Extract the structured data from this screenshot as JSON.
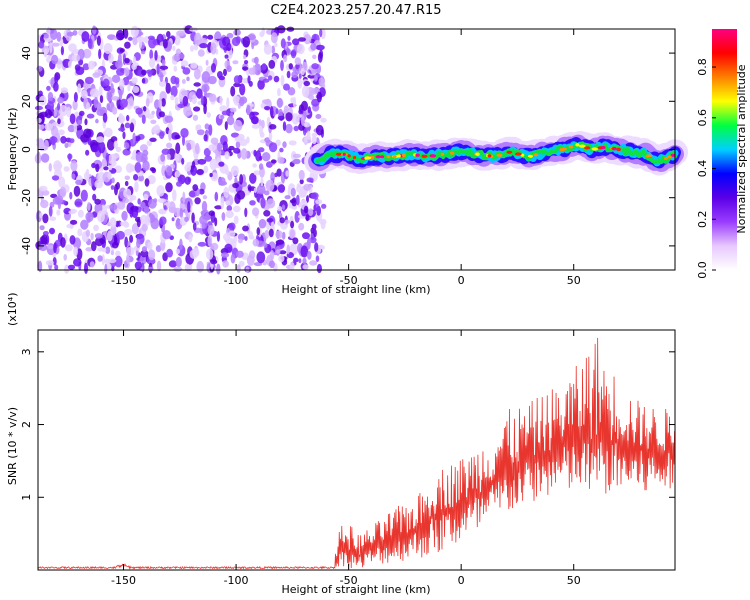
{
  "title": "C2E4.2023.257.20.47.R15",
  "chart_data": [
    {
      "type": "heatmap",
      "panel": "spectrogram",
      "xlabel": "Height of straight line (km)",
      "ylabel": "Frequency (Hz)",
      "xlim": [
        -188,
        95
      ],
      "ylim": [
        -50,
        50
      ],
      "xticks": [
        -150,
        -100,
        -50,
        0,
        50
      ],
      "yticks": [
        -40,
        -20,
        0,
        20,
        40
      ],
      "noise_region_x": [
        -188,
        -64
      ],
      "ridge": {
        "x": [
          -64,
          -58,
          -52,
          -45,
          -38,
          -30,
          -22,
          -15,
          -8,
          0,
          8,
          15,
          22,
          30,
          38,
          45,
          52,
          58,
          64,
          70,
          76,
          82,
          88,
          95
        ],
        "y": [
          -5,
          -2,
          -2,
          -4,
          -3,
          -3,
          -2,
          -3,
          -2,
          -1,
          -2,
          -3,
          -1,
          -3,
          -1,
          0,
          2,
          0,
          1,
          0,
          -1,
          -2,
          -5,
          -2
        ]
      },
      "colorbar": {
        "label": "Normalized spectral amplitude",
        "range": [
          0.0,
          0.95
        ],
        "ticks": [
          0.0,
          0.2,
          0.4,
          0.6,
          0.8
        ],
        "tick_labels": [
          "0.0",
          "0.2",
          "0.4",
          "0.6",
          "0.8"
        ],
        "colors": [
          "#ffffff",
          "#e8c8ff",
          "#9a3cff",
          "#5a00e6",
          "#0000ff",
          "#00d0ff",
          "#00ff40",
          "#ffff00",
          "#ff8000",
          "#ff0000",
          "#ff0080"
        ]
      }
    },
    {
      "type": "line",
      "panel": "snr",
      "xlabel": "Height of straight line (km)",
      "ylabel": "SNR (10 * v/v)",
      "multiplier_label": "(x10⁴)",
      "xlim": [
        -188,
        95
      ],
      "ylim": [
        0,
        3.3
      ],
      "xticks": [
        -150,
        -100,
        -50,
        0,
        50
      ],
      "yticks": [
        1,
        2,
        3
      ],
      "color": "#e8352e",
      "envelope": {
        "x": [
          -188,
          -150,
          -100,
          -60,
          -52,
          -45,
          -40,
          -30,
          -20,
          -10,
          0,
          10,
          20,
          30,
          40,
          50,
          60,
          70,
          80,
          95
        ],
        "low": [
          0.0,
          0.0,
          0.0,
          0.0,
          0.05,
          0.0,
          0.05,
          0.1,
          0.15,
          0.2,
          0.35,
          0.5,
          0.75,
          0.9,
          1.0,
          1.05,
          1.0,
          1.05,
          1.0,
          1.1
        ],
        "high": [
          0.05,
          0.06,
          0.06,
          0.06,
          0.7,
          0.5,
          0.6,
          0.85,
          1.0,
          1.4,
          1.55,
          1.8,
          2.2,
          2.3,
          2.5,
          2.75,
          3.3,
          2.6,
          2.3,
          2.2
        ],
        "mean": [
          0.02,
          0.03,
          0.03,
          0.03,
          0.3,
          0.2,
          0.3,
          0.4,
          0.55,
          0.8,
          0.9,
          1.1,
          1.35,
          1.5,
          1.65,
          1.75,
          1.8,
          1.75,
          1.65,
          1.6
        ]
      }
    }
  ]
}
